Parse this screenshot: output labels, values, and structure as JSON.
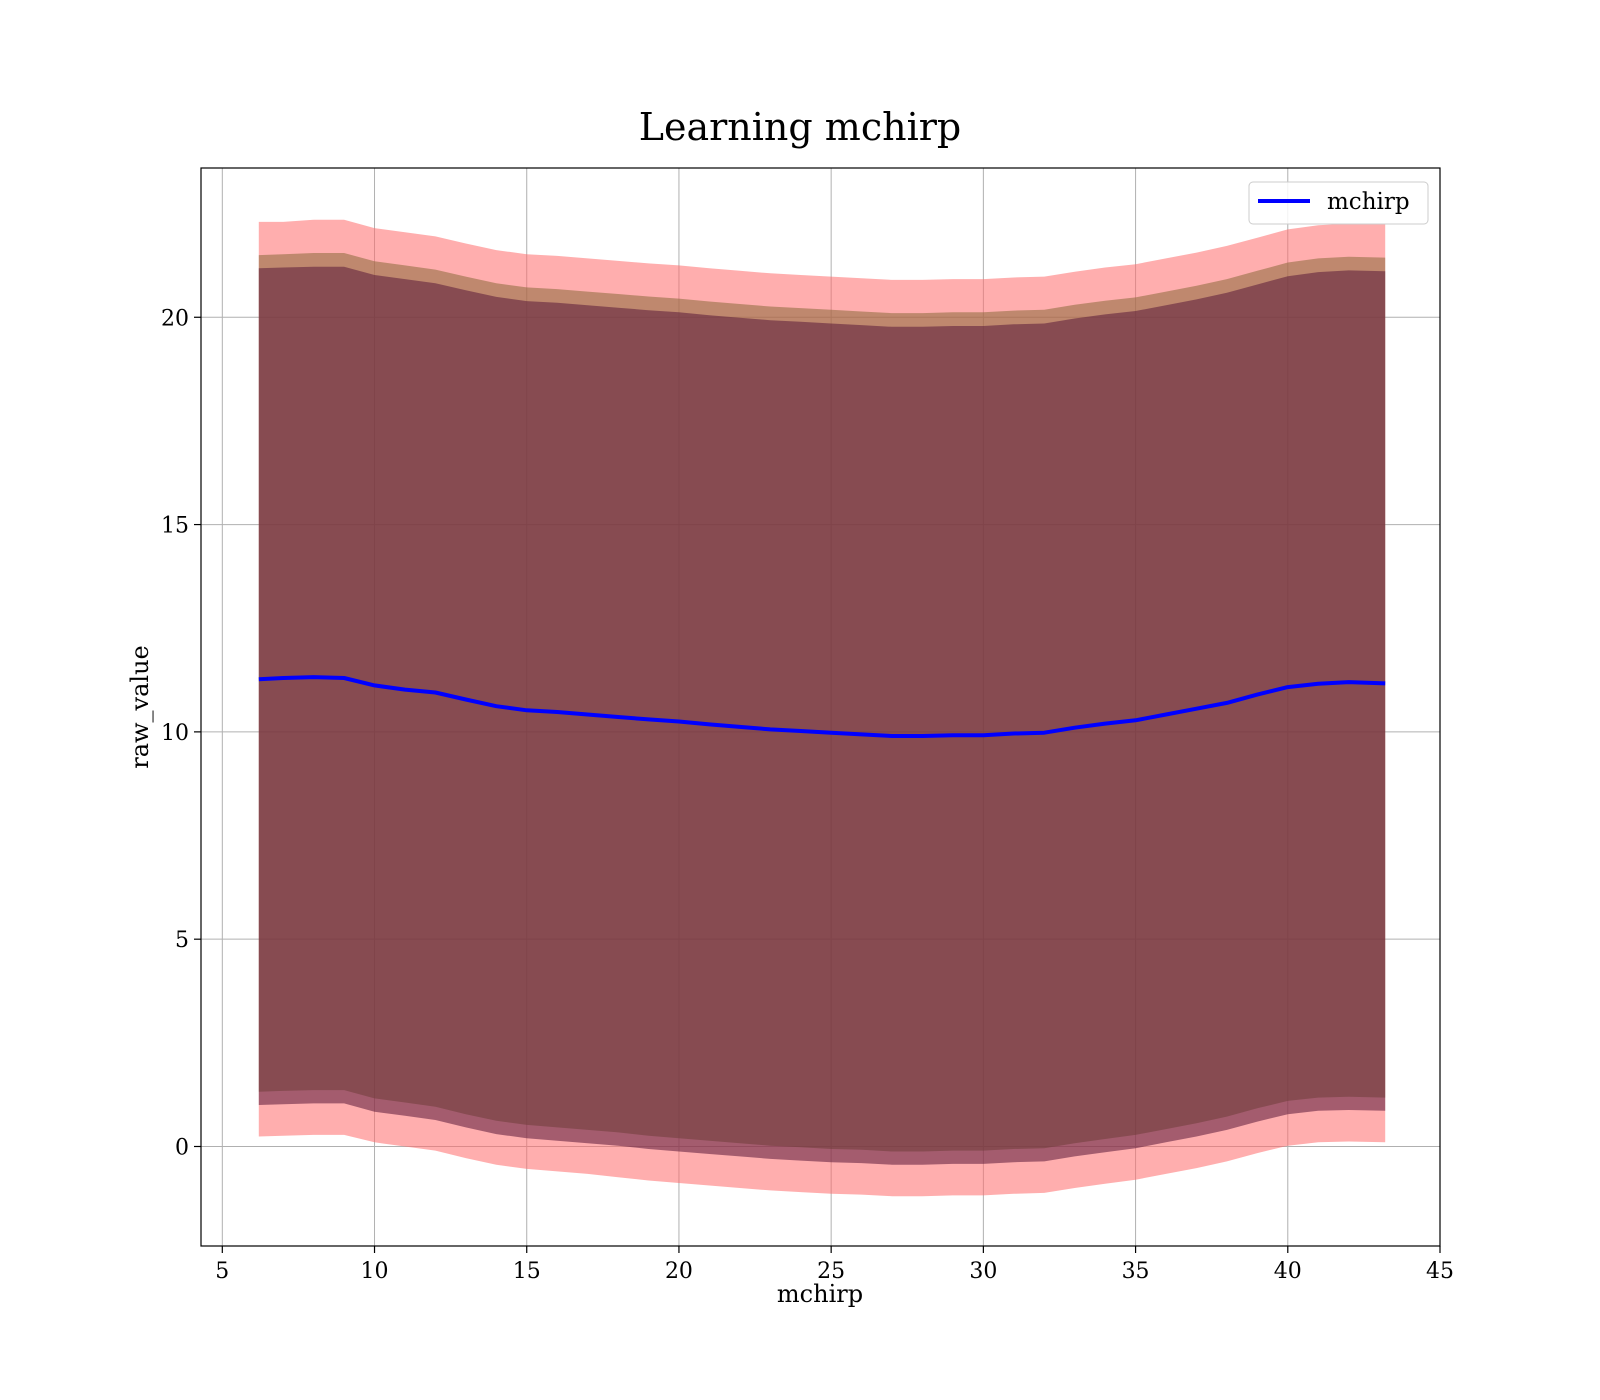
{
  "chart_data": {
    "type": "area",
    "title": "Learning mchirp",
    "xlabel": "mchirp",
    "ylabel": "raw_value",
    "xlim": [
      4.3,
      45
    ],
    "ylim": [
      -2.4,
      23.6
    ],
    "xticks": [
      5,
      10,
      15,
      20,
      25,
      30,
      35,
      40,
      45
    ],
    "yticks": [
      0,
      5,
      10,
      15,
      20
    ],
    "grid": true,
    "legend_position": "top-right",
    "legend": [
      {
        "label": "mchirp",
        "color": "#0000ff"
      }
    ],
    "x": [
      6.2,
      7,
      8,
      9,
      10,
      11,
      12,
      13,
      14,
      15,
      16,
      17,
      18,
      19,
      20,
      21,
      22,
      23,
      24,
      25,
      26,
      27,
      28,
      29,
      30,
      31,
      32,
      33,
      34,
      35,
      36,
      37,
      38,
      39,
      40,
      41,
      42,
      43.2
    ],
    "series": [
      {
        "name": "mchirp",
        "color": "#0000ff",
        "values": [
          11.27,
          11.3,
          11.32,
          11.3,
          11.12,
          11.02,
          10.95,
          10.78,
          10.62,
          10.52,
          10.48,
          10.42,
          10.36,
          10.3,
          10.25,
          10.18,
          10.12,
          10.06,
          10.02,
          9.98,
          9.94,
          9.9,
          9.9,
          9.92,
          9.92,
          9.96,
          9.98,
          10.1,
          10.2,
          10.28,
          10.42,
          10.56,
          10.7,
          10.9,
          11.08,
          11.16,
          11.2,
          11.17
        ]
      }
    ],
    "bands": [
      {
        "color": "#ff6b6b",
        "opacity": 0.55,
        "upper": [
          22.3,
          22.3,
          22.35,
          22.35,
          22.15,
          22.05,
          21.95,
          21.78,
          21.62,
          21.52,
          21.48,
          21.42,
          21.36,
          21.3,
          21.25,
          21.18,
          21.12,
          21.06,
          21.02,
          20.98,
          20.94,
          20.9,
          20.9,
          20.92,
          20.92,
          20.96,
          20.98,
          21.1,
          21.2,
          21.28,
          21.42,
          21.56,
          21.72,
          21.92,
          22.12,
          22.22,
          22.26,
          22.24
        ],
        "lower": [
          0.24,
          0.26,
          0.28,
          0.28,
          0.1,
          0.0,
          -0.1,
          -0.28,
          -0.44,
          -0.54,
          -0.6,
          -0.66,
          -0.74,
          -0.82,
          -0.88,
          -0.94,
          -1.0,
          -1.06,
          -1.1,
          -1.14,
          -1.16,
          -1.2,
          -1.2,
          -1.18,
          -1.18,
          -1.14,
          -1.12,
          -1.0,
          -0.9,
          -0.8,
          -0.66,
          -0.52,
          -0.36,
          -0.16,
          0.02,
          0.1,
          0.12,
          0.1
        ]
      },
      {
        "color": "#8a6a3a",
        "opacity": 0.55,
        "upper": [
          21.5,
          21.52,
          21.55,
          21.55,
          21.35,
          21.25,
          21.15,
          20.98,
          20.82,
          20.72,
          20.68,
          20.62,
          20.56,
          20.5,
          20.45,
          20.38,
          20.32,
          20.26,
          20.22,
          20.18,
          20.14,
          20.1,
          20.1,
          20.12,
          20.12,
          20.16,
          20.18,
          20.3,
          20.4,
          20.48,
          20.62,
          20.76,
          20.92,
          21.12,
          21.32,
          21.42,
          21.46,
          21.44
        ],
        "lower": [
          1.32,
          1.34,
          1.36,
          1.36,
          1.16,
          1.06,
          0.96,
          0.78,
          0.62,
          0.52,
          0.46,
          0.4,
          0.34,
          0.26,
          0.2,
          0.14,
          0.08,
          0.02,
          -0.02,
          -0.06,
          -0.08,
          -0.12,
          -0.12,
          -0.1,
          -0.1,
          -0.06,
          -0.04,
          0.08,
          0.18,
          0.28,
          0.42,
          0.56,
          0.72,
          0.92,
          1.1,
          1.18,
          1.2,
          1.18
        ]
      },
      {
        "color": "#5a1a3a",
        "opacity": 0.55,
        "upper": [
          21.18,
          21.2,
          21.22,
          21.22,
          21.02,
          20.92,
          20.82,
          20.65,
          20.49,
          20.39,
          20.35,
          20.29,
          20.23,
          20.17,
          20.12,
          20.05,
          19.99,
          19.93,
          19.89,
          19.85,
          19.81,
          19.77,
          19.77,
          19.79,
          19.79,
          19.83,
          19.85,
          19.97,
          20.07,
          20.15,
          20.29,
          20.43,
          20.59,
          20.79,
          20.99,
          21.09,
          21.13,
          21.11
        ],
        "lower": [
          1.0,
          1.02,
          1.04,
          1.04,
          0.84,
          0.74,
          0.64,
          0.46,
          0.3,
          0.2,
          0.14,
          0.08,
          0.02,
          -0.06,
          -0.12,
          -0.18,
          -0.24,
          -0.3,
          -0.34,
          -0.38,
          -0.4,
          -0.44,
          -0.44,
          -0.42,
          -0.42,
          -0.38,
          -0.36,
          -0.24,
          -0.14,
          -0.04,
          0.1,
          0.24,
          0.4,
          0.6,
          0.78,
          0.86,
          0.88,
          0.86
        ]
      }
    ]
  }
}
